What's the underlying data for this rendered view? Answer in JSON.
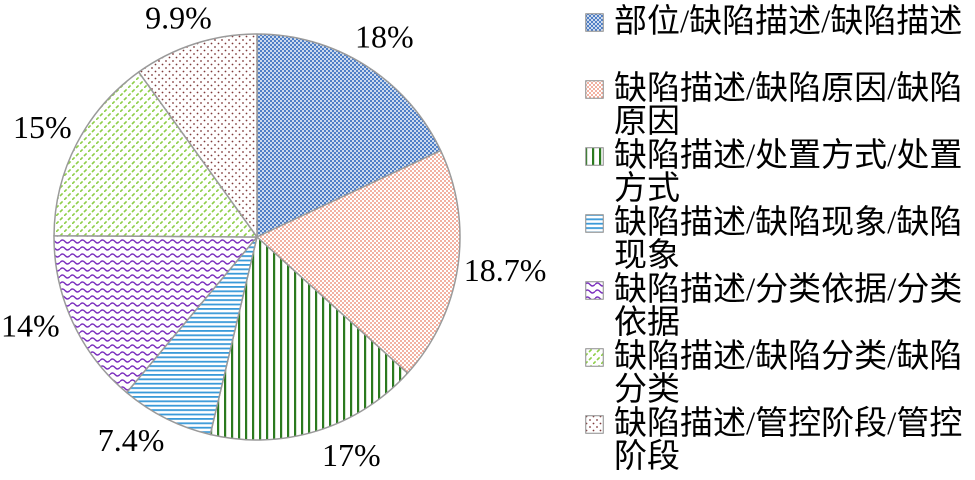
{
  "chart_data": {
    "type": "pie",
    "categories": [
      "部位/缺陷描述/缺陷描述",
      "缺陷描述/缺陷原因/缺陷原因",
      "缺陷描述/处置方式/处置方式",
      "缺陷描述/缺陷现象/缺陷现象",
      "缺陷描述/分类依据/分类依据",
      "缺陷描述/缺陷分类/缺陷分类",
      "缺陷描述/管控阶段/管控阶段"
    ],
    "values": [
      18,
      18.7,
      17,
      7.4,
      14,
      15,
      9.9
    ],
    "data_labels": [
      "18%",
      "18.7%",
      "17%",
      "7.4%",
      "14%",
      "15%",
      "9.9%"
    ],
    "colors": [
      "#4f7fc6",
      "#e97a5f",
      "#2b7a1f",
      "#3a9ad9",
      "#7b2fbe",
      "#8fcf4a",
      "#7f3a3a"
    ],
    "legend": "right"
  }
}
